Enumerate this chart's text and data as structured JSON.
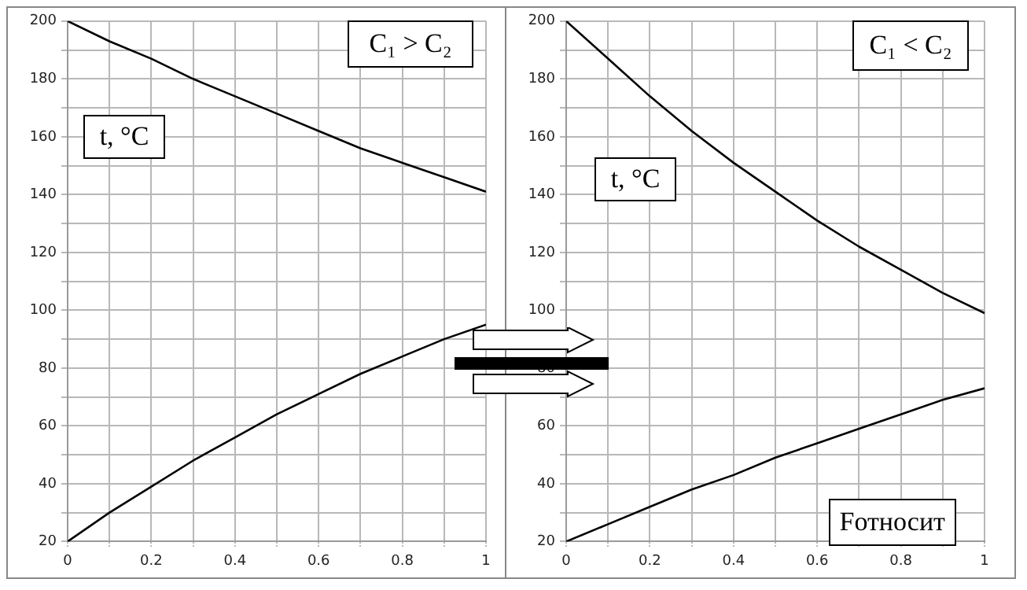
{
  "chart_data": [
    {
      "type": "line",
      "x": [
        0,
        0.1,
        0.2,
        0.3,
        0.4,
        0.5,
        0.6,
        0.7,
        0.8,
        0.9,
        1
      ],
      "series": [
        {
          "color": "#000000",
          "values": [
            200,
            193,
            187,
            180,
            174,
            168,
            162,
            156,
            151,
            146,
            141
          ]
        },
        {
          "color": "#000000",
          "values": [
            20,
            30,
            39,
            48,
            56,
            64,
            71,
            78,
            84,
            90,
            95
          ]
        }
      ],
      "xlim": [
        0,
        1
      ],
      "ylim": [
        20,
        200
      ],
      "xticks": [
        0,
        {
          "value": 0.1,
          "label": null
        },
        0.2,
        {
          "value": 0.3,
          "label": null
        },
        0.4,
        {
          "value": 0.5,
          "label": null
        },
        0.6,
        {
          "value": 0.7,
          "label": null
        },
        0.8,
        {
          "value": 0.9,
          "label": null
        },
        1
      ],
      "yticks": [
        20,
        {
          "value": 30,
          "label": null
        },
        40,
        {
          "value": 50,
          "label": null
        },
        60,
        {
          "value": 70,
          "label": null
        },
        80,
        {
          "value": 90,
          "label": null
        },
        100,
        {
          "value": 110,
          "label": null
        },
        120,
        {
          "value": 130,
          "label": null
        },
        140,
        {
          "value": 150,
          "label": null
        },
        160,
        {
          "value": 170,
          "label": null
        },
        180,
        {
          "value": 190,
          "label": null
        },
        200
      ],
      "grid": true,
      "marker": "none",
      "line_style": "solid",
      "annotations": [
        "C₁ > C₂",
        "t, °C"
      ]
    },
    {
      "type": "line",
      "x": [
        0,
        0.1,
        0.2,
        0.3,
        0.4,
        0.5,
        0.6,
        0.7,
        0.8,
        0.9,
        1
      ],
      "series": [
        {
          "color": "#000000",
          "values": [
            200,
            187,
            174,
            162,
            151,
            141,
            131,
            122,
            114,
            106,
            99
          ]
        },
        {
          "color": "#000000",
          "values": [
            20,
            26,
            32,
            38,
            43,
            49,
            54,
            59,
            64,
            69,
            73
          ]
        }
      ],
      "xlim": [
        0,
        1
      ],
      "ylim": [
        20,
        200
      ],
      "xticks": [
        0,
        {
          "value": 0.1,
          "label": null
        },
        0.2,
        {
          "value": 0.3,
          "label": null
        },
        0.4,
        {
          "value": 0.5,
          "label": null
        },
        0.6,
        {
          "value": 0.7,
          "label": null
        },
        0.8,
        {
          "value": 0.9,
          "label": null
        },
        1
      ],
      "yticks": [
        20,
        {
          "value": 30,
          "label": null
        },
        40,
        {
          "value": 50,
          "label": null
        },
        60,
        {
          "value": 70,
          "label": null
        },
        80,
        {
          "value": 90,
          "label": null
        },
        100,
        {
          "value": 110,
          "label": null
        },
        120,
        {
          "value": 130,
          "label": null
        },
        140,
        {
          "value": 150,
          "label": null
        },
        160,
        {
          "value": 170,
          "label": null
        },
        180,
        {
          "value": 190,
          "label": null
        },
        200
      ],
      "grid": true,
      "marker": "none",
      "line_style": "solid",
      "annotations": [
        "C₁ < C₂",
        "t, °C",
        "Fотносит"
      ]
    }
  ]
}
